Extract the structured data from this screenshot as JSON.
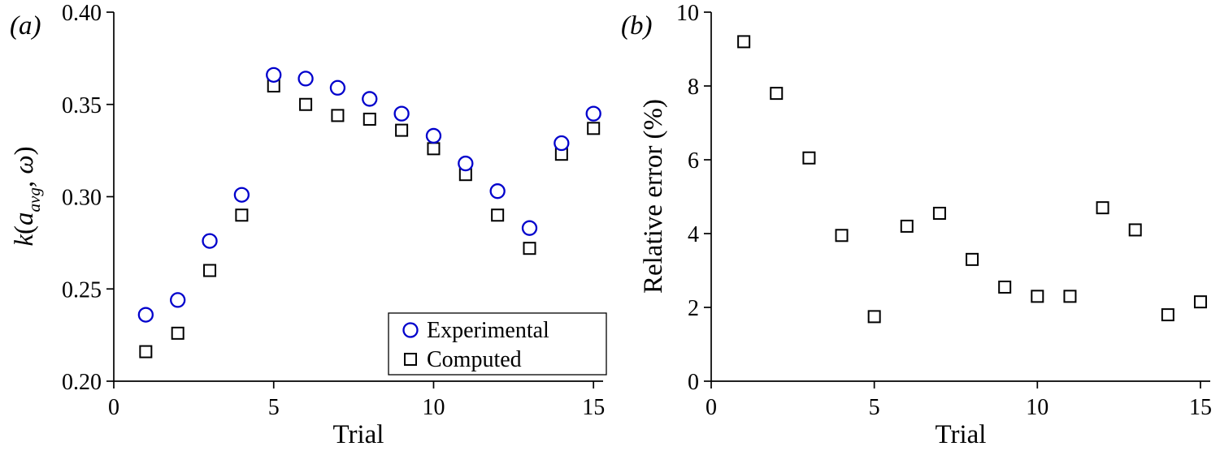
{
  "figure": {
    "panel_a_tag": "(a)",
    "panel_b_tag": "(b)"
  },
  "chart_data": [
    {
      "type": "scatter",
      "title": "",
      "xlabel": "Trial",
      "ylabel": "k(a_avg, ω)",
      "ylabel_parts": {
        "k": "k",
        "open": "(",
        "a": "a",
        "sub": "avg",
        "comma": ", ",
        "omega": "ω",
        "close": ")"
      },
      "xlim": [
        0,
        15.3
      ],
      "ylim": [
        0.2,
        0.4
      ],
      "xticks": [
        0,
        5,
        10,
        15
      ],
      "xtick_labels": [
        "0",
        "5",
        "10",
        "15"
      ],
      "yticks": [
        0.2,
        0.25,
        0.3,
        0.35,
        0.4
      ],
      "ytick_labels": [
        "0.20",
        "0.25",
        "0.30",
        "0.35",
        "0.40"
      ],
      "grid": false,
      "legend_position": "lower right",
      "x": [
        1,
        2,
        3,
        4,
        5,
        6,
        7,
        8,
        9,
        10,
        11,
        12,
        13,
        14,
        15
      ],
      "series": [
        {
          "name": "Experimental",
          "marker": "circle",
          "color": "#0000cc",
          "values": [
            0.236,
            0.244,
            0.276,
            0.301,
            0.366,
            0.364,
            0.359,
            0.353,
            0.345,
            0.333,
            0.318,
            0.303,
            0.283,
            0.329,
            0.345
          ]
        },
        {
          "name": "Computed",
          "marker": "square",
          "color": "#000000",
          "values": [
            0.216,
            0.226,
            0.26,
            0.29,
            0.36,
            0.35,
            0.344,
            0.342,
            0.336,
            0.326,
            0.312,
            0.29,
            0.272,
            0.323,
            0.337
          ]
        }
      ]
    },
    {
      "type": "scatter",
      "title": "",
      "xlabel": "Trial",
      "ylabel": "Relative error (%)",
      "xlim": [
        0,
        15.3
      ],
      "ylim": [
        0,
        10
      ],
      "xticks": [
        0,
        5,
        10,
        15
      ],
      "xtick_labels": [
        "0",
        "5",
        "10",
        "15"
      ],
      "yticks": [
        0,
        2,
        4,
        6,
        8,
        10
      ],
      "ytick_labels": [
        "0",
        "2",
        "4",
        "6",
        "8",
        "10"
      ],
      "grid": false,
      "legend_position": "none",
      "x": [
        1,
        2,
        3,
        4,
        5,
        6,
        7,
        8,
        9,
        10,
        11,
        12,
        13,
        14,
        15
      ],
      "series": [
        {
          "name": "Computed",
          "marker": "square",
          "color": "#000000",
          "values": [
            9.2,
            7.8,
            6.05,
            3.95,
            1.75,
            4.2,
            4.55,
            3.3,
            2.55,
            2.3,
            2.3,
            4.7,
            4.1,
            1.8,
            2.15
          ]
        }
      ]
    }
  ]
}
